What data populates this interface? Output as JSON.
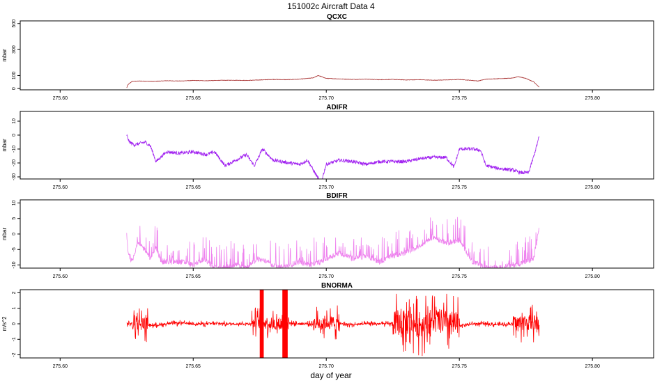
{
  "figure": {
    "title": "151002c   Aircraft Data 4",
    "xlabel": "day of year"
  },
  "chart_data": [
    {
      "type": "line",
      "title": "QCXC",
      "ylabel": "mbar",
      "color": "#a52a2a",
      "xlim": [
        275.585,
        275.823
      ],
      "ylim": [
        -10,
        520
      ],
      "x_ticks": [
        "275.60",
        "275.65",
        "275.70",
        "275.75",
        "275.80"
      ],
      "y_ticks": [
        "0",
        "100",
        "300",
        "500"
      ],
      "data_x_range": [
        275.625,
        275.78
      ],
      "series": [
        {
          "x": [
            275.625,
            275.6255,
            275.627,
            275.63,
            275.635,
            275.64,
            275.645,
            275.65,
            275.655,
            275.66,
            275.665,
            275.67,
            275.675,
            275.68,
            275.685,
            275.69,
            275.695,
            275.697,
            275.7,
            275.705,
            275.71,
            275.715,
            275.72,
            275.725,
            275.73,
            275.735,
            275.74,
            275.745,
            275.75,
            275.755,
            275.757,
            275.76,
            275.765,
            275.77,
            275.772,
            275.775,
            275.778,
            275.78
          ],
          "y": [
            5,
            30,
            55,
            58,
            55,
            60,
            58,
            62,
            60,
            63,
            64,
            62,
            66,
            70,
            68,
            72,
            82,
            100,
            78,
            74,
            70,
            72,
            68,
            70,
            66,
            68,
            64,
            66,
            70,
            62,
            58,
            72,
            76,
            80,
            92,
            78,
            50,
            10
          ]
        }
      ]
    },
    {
      "type": "line",
      "title": "ADIFR",
      "ylabel": "mbar",
      "color": "#a020f0",
      "xlim": [
        275.585,
        275.823
      ],
      "ylim": [
        -31.5,
        17
      ],
      "x_ticks": [
        "275.60",
        "275.65",
        "275.70",
        "275.75",
        "275.80"
      ],
      "y_ticks": [
        "-30",
        "-20",
        "-10",
        "0",
        "10"
      ],
      "data_x_range": [
        275.625,
        275.78
      ],
      "series": [
        {
          "x": [
            275.625,
            275.626,
            275.628,
            275.63,
            275.632,
            275.634,
            275.636,
            275.64,
            275.645,
            275.65,
            275.655,
            275.658,
            275.662,
            275.665,
            275.67,
            275.673,
            275.676,
            275.68,
            275.683,
            275.686,
            275.69,
            275.693,
            275.696,
            275.698,
            275.7,
            275.705,
            275.71,
            275.715,
            275.72,
            275.725,
            275.73,
            275.735,
            275.74,
            275.745,
            275.748,
            275.75,
            275.755,
            275.758,
            275.76,
            275.765,
            275.77,
            275.773,
            275.776,
            275.778,
            275.78
          ],
          "y": [
            0,
            -5,
            -7,
            -6,
            -5,
            -8,
            -19,
            -12,
            -13,
            -12,
            -14,
            -12,
            -22,
            -19,
            -14,
            -22,
            -10,
            -18,
            -19,
            -20,
            -21,
            -18,
            -28,
            -34,
            -21,
            -18,
            -19,
            -21,
            -19,
            -19,
            -19,
            -17,
            -16,
            -16,
            -23,
            -10,
            -10,
            -11,
            -22,
            -24,
            -25,
            -27,
            -27,
            -15,
            -1
          ]
        }
      ]
    },
    {
      "type": "line",
      "title": "BDIFR",
      "ylabel": "mbar",
      "color": "#ee82ee",
      "xlim": [
        275.585,
        275.823
      ],
      "ylim": [
        -11,
        11
      ],
      "x_ticks": [
        "275.60",
        "275.65",
        "275.70",
        "275.75",
        "275.80"
      ],
      "y_ticks": [
        "-10",
        "-5",
        "0",
        "5",
        "10"
      ],
      "data_x_range": [
        275.625,
        275.78
      ],
      "series": [
        {
          "x": [
            275.625,
            275.6255,
            275.627,
            275.629,
            275.632,
            275.634,
            275.636,
            275.638,
            275.642,
            275.646,
            275.65,
            275.654,
            275.658,
            275.662,
            275.666,
            275.67,
            275.674,
            275.678,
            275.682,
            275.686,
            275.69,
            275.694,
            275.698,
            275.7,
            275.705,
            275.71,
            275.715,
            275.72,
            275.725,
            275.73,
            275.735,
            275.74,
            275.745,
            275.75,
            275.755,
            275.76,
            275.765,
            275.77,
            275.775,
            275.778,
            275.78
          ],
          "y": [
            0,
            -6,
            -9,
            -3,
            -5,
            -8,
            -4,
            -9,
            -9,
            -9,
            -10,
            -8,
            -11,
            -11,
            -10,
            -11,
            -8,
            -9,
            -11,
            -10,
            -9,
            -10,
            -9,
            -8,
            -6,
            -8,
            -7,
            -9,
            -7,
            -6,
            -4,
            -1,
            -3,
            -2,
            -9,
            -11,
            -11,
            -10,
            -9,
            -8,
            2
          ]
        }
      ]
    },
    {
      "type": "line",
      "title": "BNORMA",
      "ylabel": "m/s^2",
      "color": "#ff0000",
      "xlim": [
        275.585,
        275.823
      ],
      "ylim": [
        -2.2,
        2.2
      ],
      "x_ticks": [
        "275.60",
        "275.65",
        "275.70",
        "275.75",
        "275.80"
      ],
      "y_ticks": [
        "-2",
        "-1",
        "0",
        "1",
        "2"
      ],
      "data_x_range": [
        275.625,
        275.78
      ],
      "series": [
        {
          "x": [
            275.625,
            275.63,
            275.635,
            275.64,
            275.645,
            275.65,
            275.655,
            275.66,
            275.665,
            275.67,
            275.675,
            275.68,
            275.685,
            275.69,
            275.695,
            275.7,
            275.705,
            275.71,
            275.715,
            275.72,
            275.725,
            275.73,
            275.735,
            275.74,
            275.745,
            275.75,
            275.755,
            275.76,
            275.765,
            275.77,
            275.775,
            275.78
          ],
          "y": [
            0,
            0.05,
            -0.1,
            0,
            0.05,
            0,
            0,
            0.02,
            0,
            0,
            0.1,
            0,
            0.05,
            0,
            0,
            0.1,
            0,
            -0.05,
            0,
            0,
            0,
            0.1,
            -0.1,
            0.2,
            0.1,
            -0.1,
            0,
            0,
            -0.05,
            0,
            0.1,
            0
          ]
        }
      ]
    }
  ]
}
